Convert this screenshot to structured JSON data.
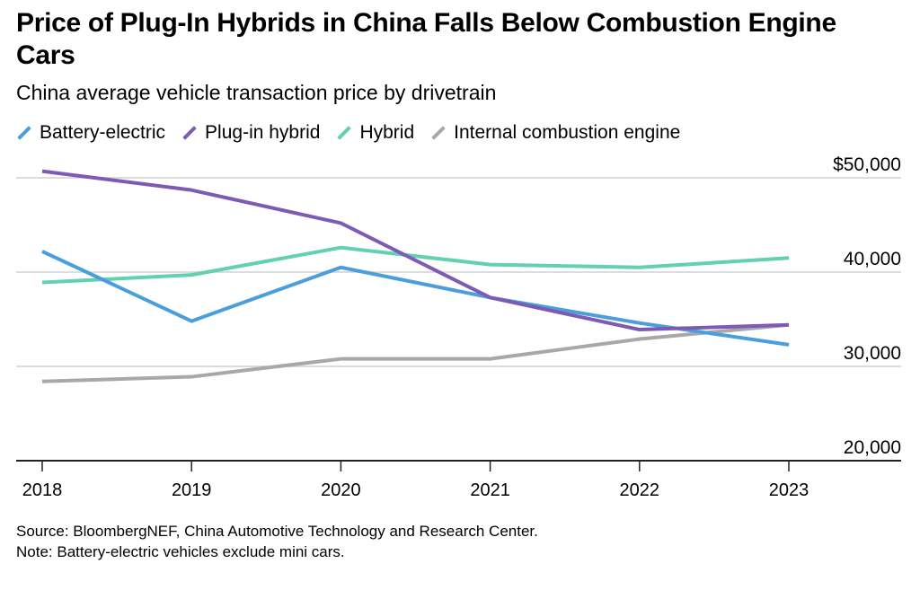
{
  "chart_data": {
    "type": "line",
    "title": "Price of Plug-In Hybrids in China Falls Below Combustion Engine Cars",
    "subtitle": "China average vehicle transaction price by drivetrain",
    "x": [
      "2018",
      "2019",
      "2020",
      "2021",
      "2022",
      "2023"
    ],
    "ylim": [
      20000,
      50000
    ],
    "yticks": [
      20000,
      30000,
      40000,
      50000
    ],
    "ytick_labels": [
      "20,000",
      "30,000",
      "40,000",
      "$50,000"
    ],
    "grid": true,
    "legend_position": "top",
    "series": [
      {
        "name": "Battery-electric",
        "color": "#4a9edb",
        "values": [
          42200,
          34800,
          40500,
          37300,
          34600,
          32300
        ]
      },
      {
        "name": "Plug-in hybrid",
        "color": "#7d5ab4",
        "values": [
          50700,
          48700,
          45200,
          37300,
          33900,
          34400
        ]
      },
      {
        "name": "Hybrid",
        "color": "#62d0b1",
        "values": [
          38900,
          39700,
          42600,
          40800,
          40500,
          41500
        ]
      },
      {
        "name": "Internal combustion engine",
        "color": "#a8a8a8",
        "values": [
          28400,
          28900,
          30800,
          30800,
          32900,
          34400
        ]
      }
    ]
  },
  "source": "Source: BloombergNEF, China Automotive Technology and Research Center.",
  "note": "Note: Battery-electric vehicles exclude mini cars."
}
